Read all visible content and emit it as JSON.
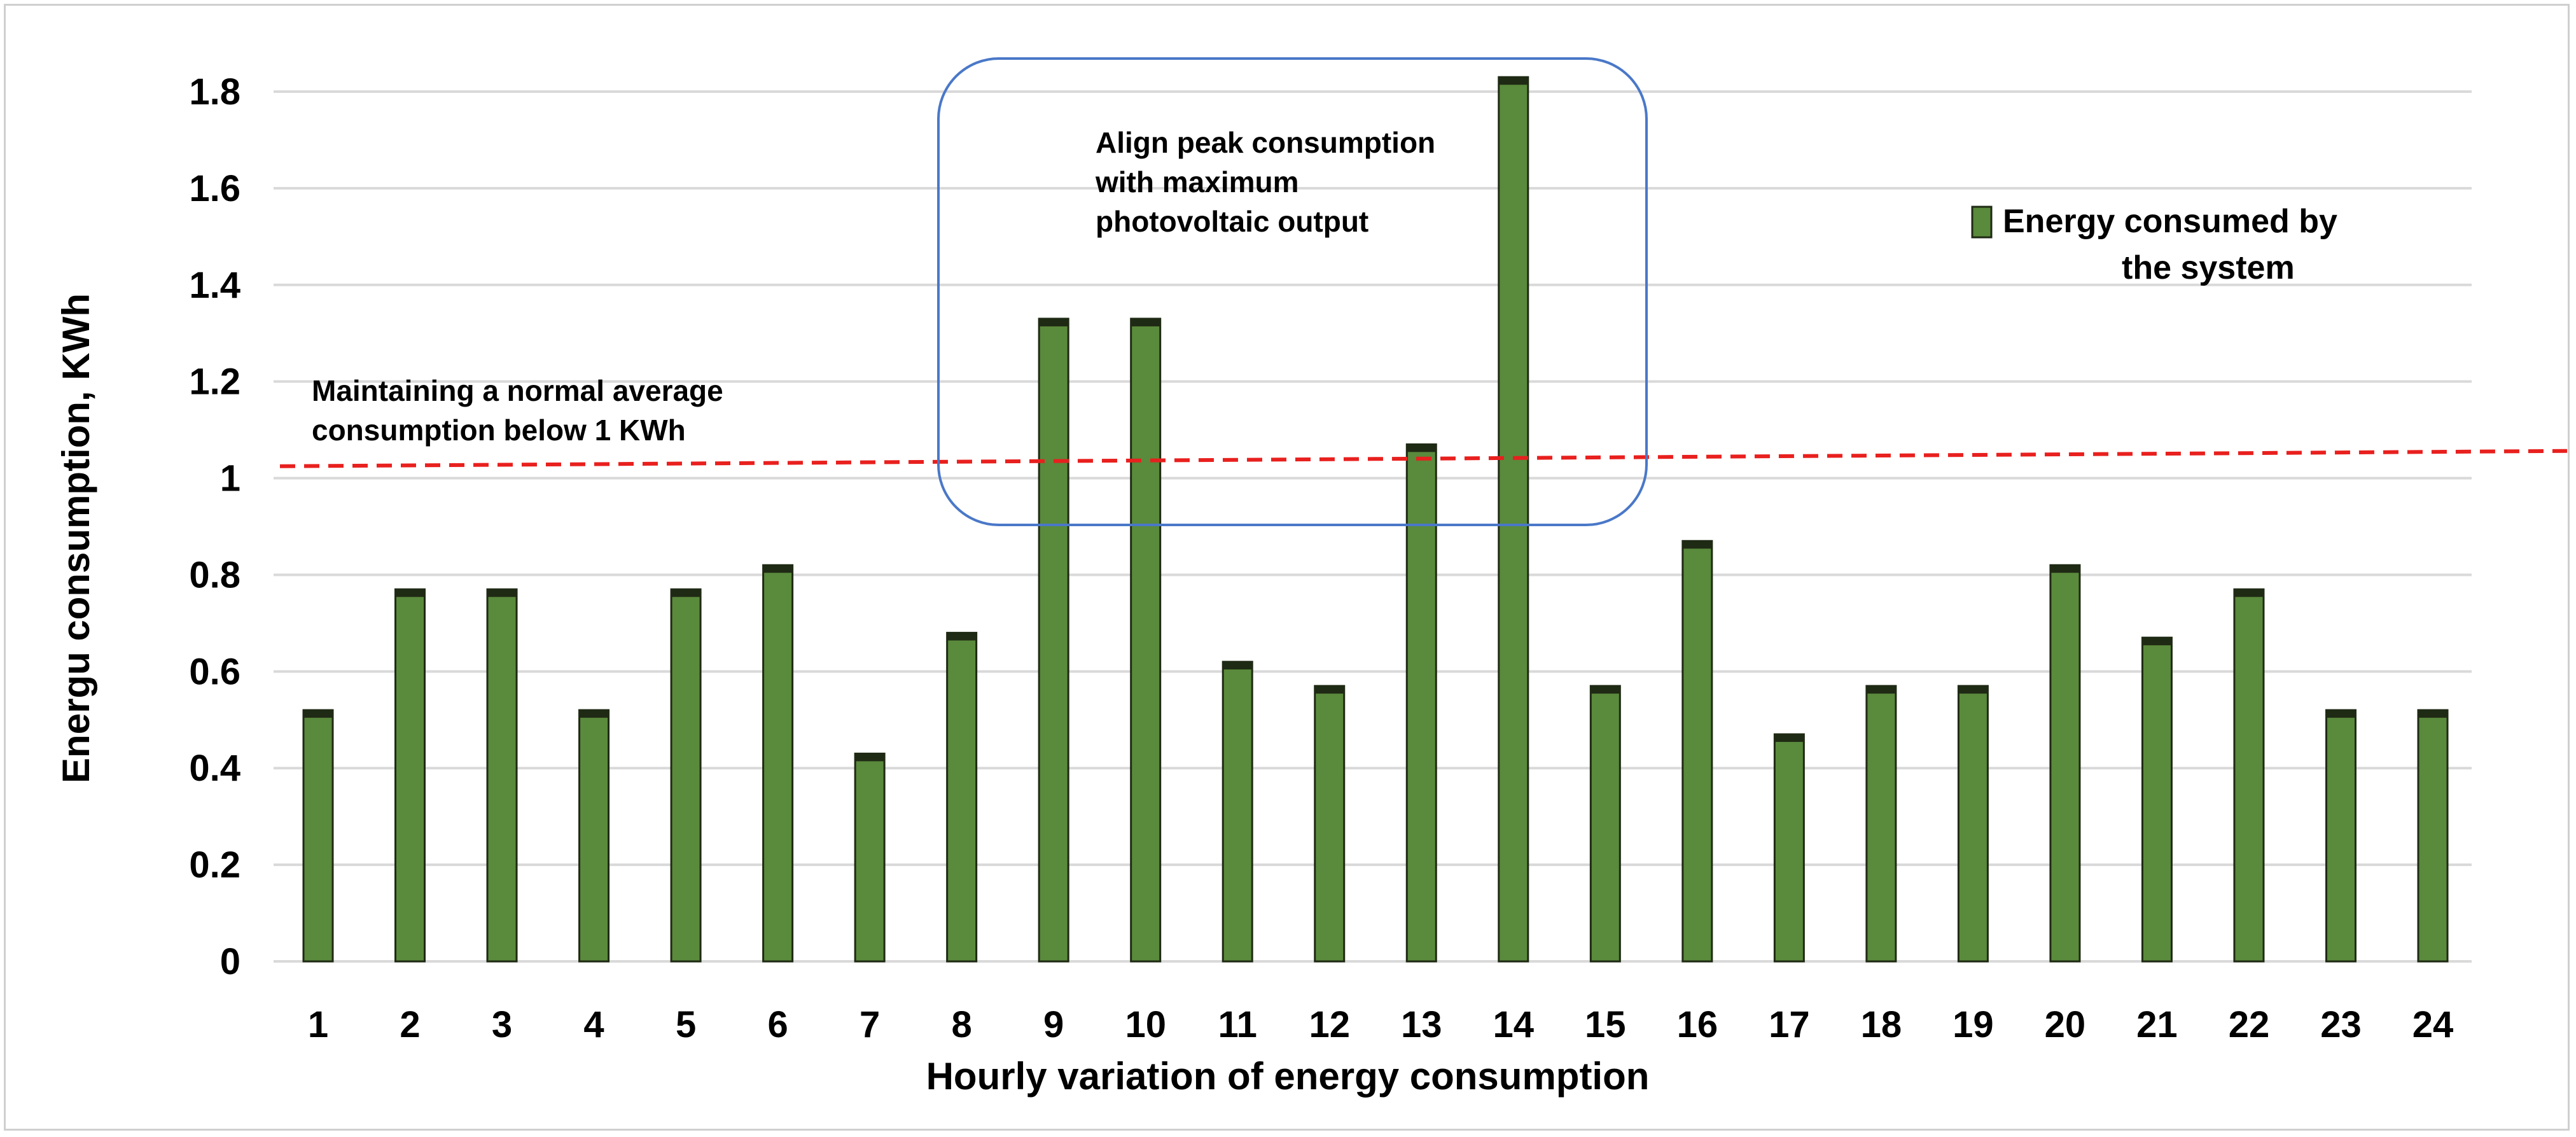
{
  "chart_data": {
    "type": "bar",
    "categories": [
      "1",
      "2",
      "3",
      "4",
      "5",
      "6",
      "7",
      "8",
      "9",
      "10",
      "11",
      "12",
      "13",
      "14",
      "15",
      "16",
      "17",
      "18",
      "19",
      "20",
      "21",
      "22",
      "23",
      "24"
    ],
    "series": [
      {
        "name": "Energy consumed by the system",
        "values": [
          0.52,
          0.77,
          0.77,
          0.52,
          0.77,
          0.82,
          0.43,
          0.68,
          1.33,
          1.33,
          0.62,
          0.57,
          1.07,
          1.83,
          0.57,
          0.87,
          0.47,
          0.57,
          0.57,
          0.82,
          0.67,
          0.77,
          0.52,
          0.52
        ]
      }
    ],
    "xlabel": "Hourly variation of energy consumption",
    "ylabel": "Energu consumption, KWh",
    "yticks": [
      "0",
      "0.2",
      "0.4",
      "0.6",
      "0.8",
      "1",
      "1.2",
      "1.4",
      "1.6",
      "1.8"
    ],
    "ylim": [
      0,
      1.8
    ],
    "grid": true,
    "legend_position": "right",
    "reference_line": {
      "y": 1.03,
      "style": "dashed"
    },
    "colors": {
      "bar": "#5a8a3c",
      "bar_edge": "#1f2a14",
      "reference_line": "#e8201e",
      "highlight_box": "#4a78c8",
      "grid": "#d9d9d9"
    },
    "annotations": {
      "average": [
        "Maintaining a normal average",
        "consumption below 1 KWh"
      ],
      "peak": [
        "Align peak consumption",
        "with maximum",
        "photovoltaic output"
      ]
    },
    "legend_lines": [
      "Energy consumed by",
      "the system"
    ]
  }
}
